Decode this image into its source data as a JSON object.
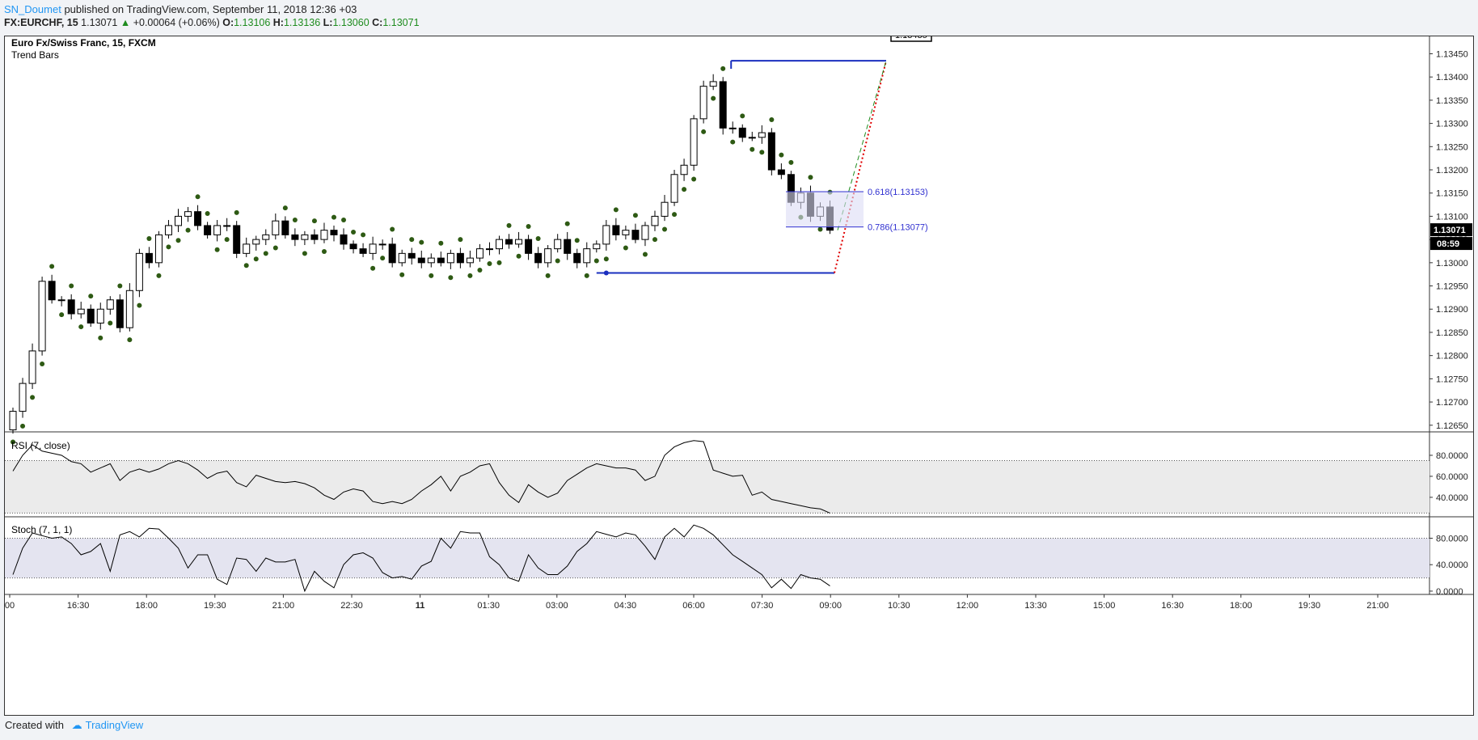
{
  "header": {
    "author": "SN_Doumet",
    "published": "published on TradingView.com, September 11, 2018 12:36 +03",
    "symbol": "FX:EURCHF, 15",
    "last": "1.13071",
    "arrow": "▲",
    "change": "+0.00064 (+0.06%)",
    "o_label": "O:",
    "o_value": "1.13106",
    "h_label": "H:",
    "h_value": "1.13136",
    "l_label": "L:",
    "l_value": "1.13060",
    "c_label": "C:",
    "c_value": "1.13071"
  },
  "footer": {
    "created_with": "Created with",
    "brand": "TradingView"
  },
  "chart_data": [
    {
      "type": "candlestick",
      "title": "Euro Fx/Swiss Franc, 15, FXCM",
      "subtitle": "Trend Bars",
      "ylim": [
        1.1262,
        1.1347
      ],
      "y_ticks": [
        "1.12650",
        "1.12700",
        "1.12750",
        "1.12800",
        "1.12850",
        "1.12900",
        "1.12950",
        "1.13000",
        "1.13050",
        "1.13100",
        "1.13150",
        "1.13200",
        "1.13250",
        "1.13300",
        "1.13350",
        "1.13400",
        "1.13450"
      ],
      "x_ticks": [
        "00",
        "16:30",
        "18:00",
        "19:30",
        "21:00",
        "22:30",
        "11",
        "01:30",
        "03:00",
        "04:30",
        "06:00",
        "07:30",
        "09:00",
        "10:30",
        "12:00",
        "13:30",
        "15:00",
        "16:30",
        "18:00",
        "19:30",
        "21:00"
      ],
      "price_label": "1.13071",
      "countdown_label": "08:59",
      "closes": [
        1.1268,
        1.1274,
        1.1281,
        1.1296,
        1.1292,
        1.1292,
        1.1289,
        1.129,
        1.1287,
        1.129,
        1.1292,
        1.1286,
        1.1294,
        1.1302,
        1.13,
        1.1306,
        1.1308,
        1.131,
        1.1311,
        1.1308,
        1.1306,
        1.1308,
        1.1308,
        1.1302,
        1.1304,
        1.1305,
        1.1306,
        1.1309,
        1.1306,
        1.1305,
        1.1306,
        1.1305,
        1.1307,
        1.1306,
        1.1304,
        1.1303,
        1.1302,
        1.1304,
        1.1304,
        1.13,
        1.1302,
        1.1301,
        1.13,
        1.1301,
        1.13,
        1.1302,
        1.13,
        1.1301,
        1.1303,
        1.1303,
        1.1305,
        1.1304,
        1.1305,
        1.1302,
        1.13,
        1.1303,
        1.1305,
        1.1302,
        1.13,
        1.1303,
        1.1304,
        1.1308,
        1.1306,
        1.1307,
        1.1305,
        1.1308,
        1.131,
        1.1313,
        1.1319,
        1.1321,
        1.1331,
        1.1338,
        1.1339,
        1.1329,
        1.1329,
        1.1327,
        1.1327,
        1.1328,
        1.132,
        1.1319,
        1.1313,
        1.1315,
        1.131,
        1.1312,
        1.1307
      ],
      "bar_count": 85,
      "projection_target": "1.13435",
      "levels": [
        {
          "label": "0.618(1.13153)",
          "value": 1.13153
        },
        {
          "label": "0.786(1.13077)",
          "value": 1.13077
        }
      ],
      "swing_high": 1.13435,
      "swing_low": 1.12978
    },
    {
      "type": "line",
      "title": "RSI (7, close)",
      "y_ticks": [
        "80.0000",
        "60.0000",
        "40.0000"
      ],
      "ylim": [
        23,
        100
      ],
      "band": [
        25,
        75
      ],
      "values": [
        65,
        80,
        90,
        84,
        82,
        80,
        74,
        72,
        64,
        68,
        72,
        56,
        64,
        67,
        64,
        67,
        72,
        75,
        72,
        66,
        58,
        63,
        65,
        54,
        50,
        61,
        58,
        55,
        54,
        55,
        53,
        49,
        42,
        38,
        45,
        48,
        46,
        36,
        34,
        36,
        34,
        38,
        46,
        52,
        60,
        46,
        60,
        64,
        70,
        72,
        54,
        42,
        35,
        52,
        45,
        40,
        44,
        56,
        62,
        68,
        72,
        70,
        68,
        68,
        66,
        56,
        60,
        80,
        88,
        92,
        94,
        93,
        66,
        63,
        60,
        61,
        42,
        45,
        38,
        36,
        34,
        32,
        30,
        29,
        25
      ]
    },
    {
      "type": "line",
      "title": "Stoch (7, 1, 1)",
      "y_ticks": [
        "80.0000",
        "40.0000",
        "0.0000"
      ],
      "ylim": [
        -5,
        110
      ],
      "band": [
        20,
        80
      ],
      "values": [
        25,
        65,
        88,
        84,
        80,
        82,
        72,
        55,
        60,
        72,
        30,
        85,
        90,
        82,
        95,
        94,
        80,
        65,
        35,
        55,
        55,
        18,
        10,
        50,
        48,
        30,
        50,
        44,
        44,
        48,
        0,
        30,
        15,
        5,
        40,
        55,
        58,
        50,
        28,
        20,
        22,
        18,
        38,
        45,
        80,
        65,
        90,
        88,
        88,
        52,
        40,
        20,
        15,
        55,
        35,
        25,
        25,
        38,
        60,
        72,
        90,
        86,
        82,
        88,
        85,
        68,
        48,
        82,
        95,
        82,
        100,
        95,
        85,
        70,
        55,
        45,
        35,
        25,
        5,
        18,
        4,
        25,
        20,
        18,
        8
      ]
    }
  ]
}
